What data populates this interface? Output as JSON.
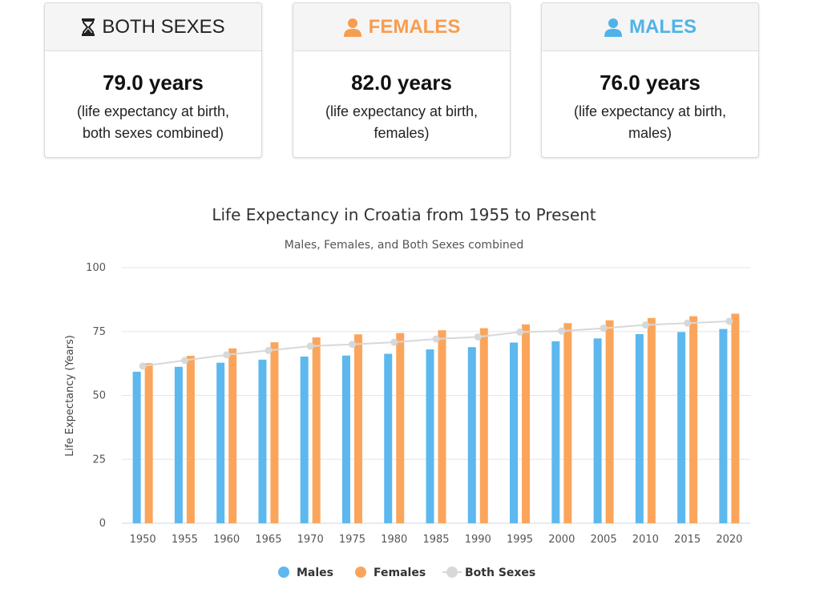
{
  "cards": [
    {
      "id": "both",
      "title": "BOTH SEXES",
      "icon": "hourglass-icon",
      "value": "79.0 years",
      "desc": "(life expectancy at birth, both sexes combined)",
      "color": "#222222"
    },
    {
      "id": "females",
      "title": "FEMALES",
      "icon": "user-icon",
      "value": "82.0 years",
      "desc": "(life expectancy at birth, females)",
      "color": "#f79d4f"
    },
    {
      "id": "males",
      "title": "MALES",
      "icon": "user-icon",
      "value": "76.0 years",
      "desc": "(life expectancy at birth, males)",
      "color": "#4fb3e8"
    }
  ],
  "chart_data": {
    "type": "bar",
    "title": "Life Expectancy in Croatia from 1955 to Present",
    "subtitle": "Males, Females, and Both Sexes combined",
    "ylabel": "Life Expectancy (Years)",
    "xlabel": "",
    "ylim": [
      0,
      100
    ],
    "yticks": [
      0,
      25,
      50,
      75,
      100
    ],
    "grid": true,
    "legend": "bottom-center",
    "categories": [
      "1950",
      "1955",
      "1960",
      "1965",
      "1970",
      "1975",
      "1980",
      "1985",
      "1990",
      "1995",
      "2000",
      "2005",
      "2010",
      "2015",
      "2020"
    ],
    "series": [
      {
        "name": "Males",
        "type": "bar",
        "color": "#5cb8ee",
        "values": [
          59.3,
          61.2,
          62.8,
          64.0,
          65.2,
          65.6,
          66.3,
          68.0,
          68.9,
          70.7,
          71.2,
          72.3,
          74.0,
          74.8,
          76.0
        ]
      },
      {
        "name": "Females",
        "type": "bar",
        "color": "#fba55c",
        "values": [
          62.6,
          65.5,
          68.4,
          70.8,
          72.7,
          73.9,
          74.4,
          75.5,
          76.3,
          77.8,
          78.3,
          79.4,
          80.3,
          81.0,
          82.0
        ]
      },
      {
        "name": "Both Sexes",
        "type": "line",
        "color": "#d8d8d8",
        "values": [
          61.5,
          63.7,
          65.9,
          67.6,
          69.3,
          70.0,
          70.8,
          72.1,
          72.9,
          74.8,
          75.2,
          76.3,
          77.6,
          78.3,
          79.0
        ]
      }
    ]
  }
}
